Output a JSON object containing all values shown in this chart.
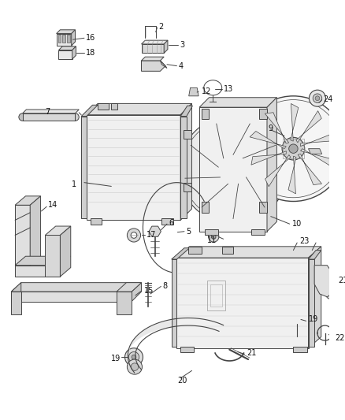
{
  "bg_color": "#ffffff",
  "lc": "#444444",
  "lw": 0.7,
  "label_fs": 7.0,
  "figsize": [
    4.38,
    5.33
  ],
  "dpi": 100
}
